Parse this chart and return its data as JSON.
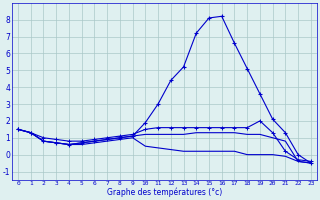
{
  "xlabel": "Graphe des températures (°c)",
  "x": [
    0,
    1,
    2,
    3,
    4,
    5,
    6,
    7,
    8,
    9,
    10,
    11,
    12,
    13,
    14,
    15,
    16,
    17,
    18,
    19,
    20,
    21,
    22,
    23
  ],
  "line_main": [
    1.5,
    1.3,
    0.8,
    0.7,
    0.6,
    0.7,
    0.8,
    0.9,
    1.0,
    1.1,
    1.9,
    3.0,
    4.4,
    5.2,
    7.2,
    8.1,
    8.2,
    6.6,
    5.1,
    3.6,
    2.1,
    1.3,
    0.0,
    -0.5
  ],
  "line_upper": [
    1.5,
    1.3,
    1.0,
    0.9,
    0.8,
    0.8,
    0.9,
    1.0,
    1.1,
    1.2,
    1.5,
    1.6,
    1.6,
    1.6,
    1.6,
    1.6,
    1.6,
    1.6,
    1.6,
    2.0,
    1.3,
    0.2,
    -0.3,
    -0.4
  ],
  "line_mid": [
    1.5,
    1.3,
    0.8,
    0.7,
    0.6,
    0.7,
    0.8,
    0.9,
    1.0,
    1.1,
    1.2,
    1.2,
    1.2,
    1.2,
    1.3,
    1.3,
    1.3,
    1.3,
    1.2,
    1.2,
    1.0,
    0.8,
    -0.4,
    -0.5
  ],
  "line_lower": [
    1.5,
    1.3,
    0.8,
    0.7,
    0.6,
    0.6,
    0.7,
    0.8,
    0.9,
    1.0,
    0.5,
    0.4,
    0.3,
    0.2,
    0.2,
    0.2,
    0.2,
    0.2,
    0.0,
    0.0,
    0.0,
    -0.1,
    -0.4,
    -0.5
  ],
  "line_color": "#0000cc",
  "bg_color": "#dff0f0",
  "grid_color": "#aac8c8",
  "ylim": [
    -1.5,
    9.0
  ],
  "yticks": [
    -1,
    0,
    1,
    2,
    3,
    4,
    5,
    6,
    7,
    8
  ],
  "xlim": [
    -0.5,
    23.5
  ],
  "figsize": [
    3.2,
    2.0
  ],
  "dpi": 100
}
